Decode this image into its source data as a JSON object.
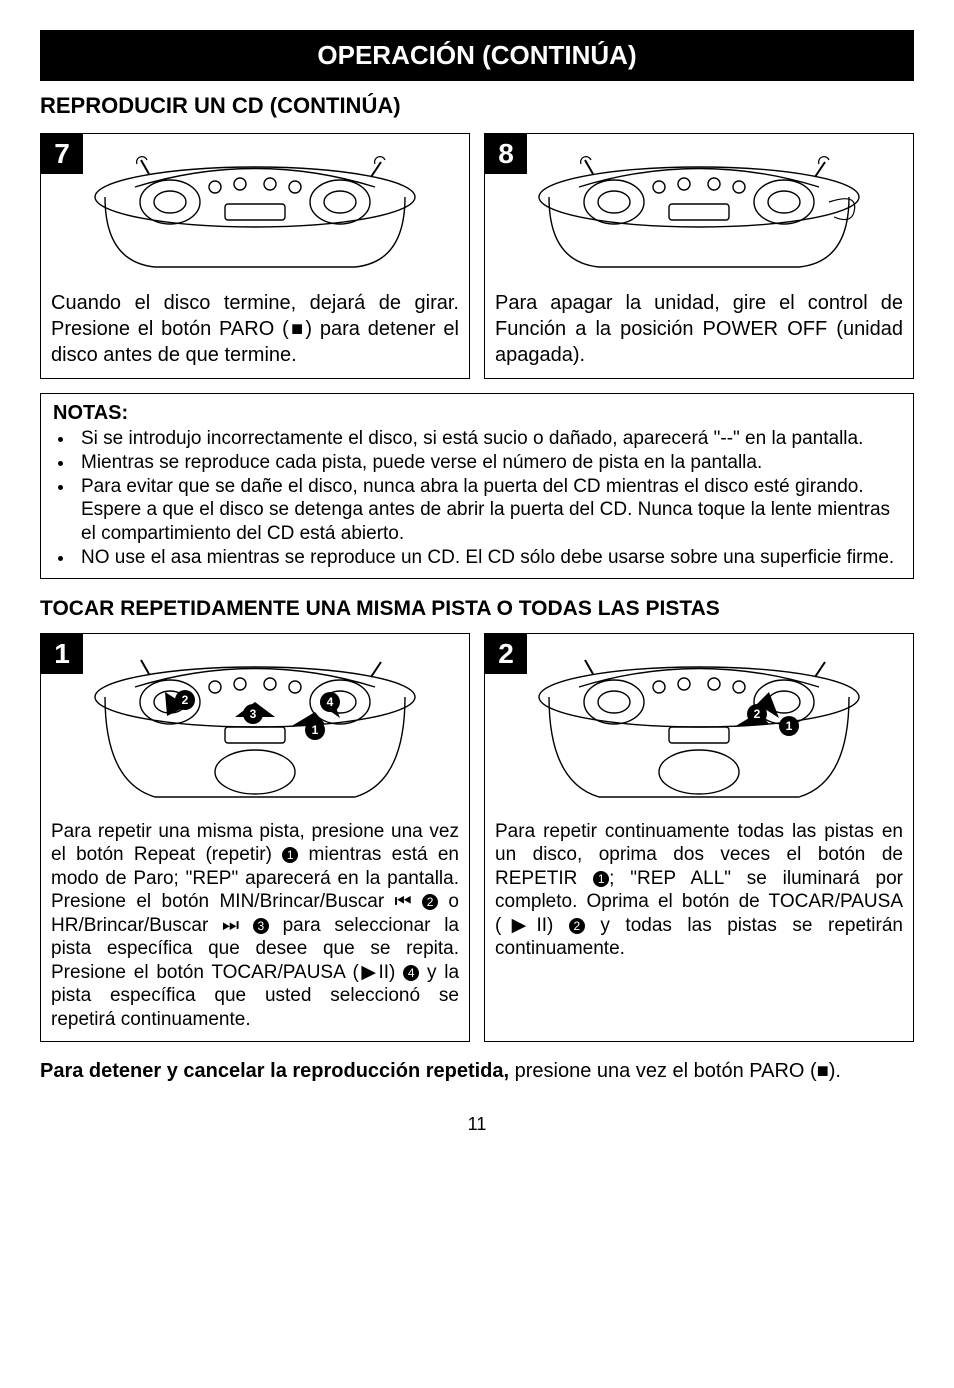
{
  "header": "OPERACIÓN (CONTINÚA)",
  "subheader": "REPRODUCIR UN CD (CONTINÚA)",
  "steps_top": [
    {
      "num": "7",
      "text": "Cuando el disco termine, dejará de girar. Presione el botón PARO (■) para detener el disco antes de que termine."
    },
    {
      "num": "8",
      "text": "Para apagar la unidad, gire el control de Función a la posición POWER OFF (unidad apagada)."
    }
  ],
  "notes_title": "NOTAS:",
  "notes": [
    "Si se introdujo incorrectamente el disco, si está sucio o dañado, aparecerá \"--\" en la pantalla.",
    "Mientras se reproduce cada pista, puede verse el número de pista en la pantalla.",
    "Para evitar que se dañe el disco, nunca abra la puerta del CD mientras el disco esté girando. Espere a que el disco se detenga antes de abrir la puerta del CD. Nunca toque la lente mientras el compartimiento del CD está abierto.",
    "NO use el asa mientras se reproduce un CD. El CD sólo debe usarse sobre una superficie firme."
  ],
  "subheader2": "TOCAR REPETIDAMENTE UNA MISMA PISTA O TODAS LAS PISTAS",
  "steps_bottom": [
    {
      "num": "1",
      "text_html": "Para repetir una misma pista, presione una vez el botón Repeat (repetir) <span class='circled'>1</span> mientras está en modo de Paro; \"REP\" aparecerá en la pantalla. Presione el botón MIN/Brincar/Buscar <span class='sym'>⏮</span> <span class='circled'>2</span> o HR/Brincar/Buscar <span class='sym'>⏭</span> <span class='circled'>3</span> para seleccionar la pista específica que desee que se repita. Presione el botón TOCAR/PAUSA (<span class='sym'>▶II</span>) <span class='circled'>4</span> y la pista específica que usted seleccionó se repetirá continuamente."
    },
    {
      "num": "2",
      "text_html": "Para repetir continuamente todas las pistas en un disco, oprima dos veces el botón de REPETIR <span class='circled'>1</span>; \"REP ALL\" se iluminará por completo. Oprima el botón de TOCAR/PAUSA (<span class='sym'>▶II</span>) <span class='circled'>2</span> y todas las pistas se repetirán continuamente."
    }
  ],
  "bottom_bold": "Para detener y cancelar la reproducción repetida,",
  "bottom_rest": " presione una vez el botón PARO (■).",
  "pagenum": "11",
  "colors": {
    "black": "#000000",
    "white": "#ffffff",
    "gray": "#5a5a5a"
  }
}
